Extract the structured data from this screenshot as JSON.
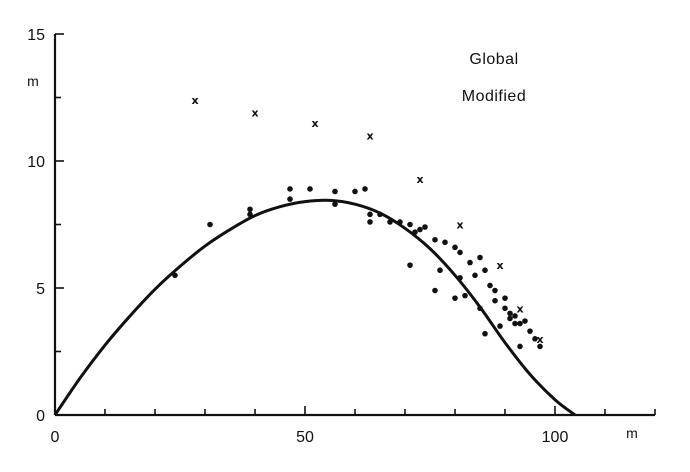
{
  "chart_data": {
    "type": "scatter",
    "title": "",
    "xlabel": "",
    "ylabel": "",
    "x_unit": "m",
    "y_unit": "m",
    "xlim": [
      0,
      120
    ],
    "ylim": [
      0,
      15
    ],
    "x_ticks": [
      0,
      50,
      100
    ],
    "y_ticks": [
      0,
      5,
      10,
      15
    ],
    "x_minor_step": 10,
    "y_minor_step": 2.5,
    "grid": false,
    "legend": [
      "Global",
      "Modified"
    ],
    "legend_position": "top-right",
    "series": [
      {
        "marker": "x",
        "points": [
          [
            28,
            12.4
          ],
          [
            40,
            11.9
          ],
          [
            52,
            11.5
          ],
          [
            63,
            11.0
          ],
          [
            73,
            9.3
          ],
          [
            81,
            7.5
          ],
          [
            89,
            5.9
          ],
          [
            93,
            4.2
          ],
          [
            97,
            3.0
          ]
        ]
      },
      {
        "marker": "dot",
        "points": [
          [
            24,
            5.5
          ],
          [
            31,
            7.5
          ],
          [
            39,
            8.1
          ],
          [
            39,
            7.9
          ],
          [
            47,
            8.9
          ],
          [
            47,
            8.5
          ],
          [
            51,
            8.9
          ],
          [
            56,
            8.8
          ],
          [
            56,
            8.3
          ],
          [
            60,
            8.8
          ],
          [
            62,
            8.9
          ],
          [
            63,
            7.9
          ],
          [
            63,
            7.6
          ],
          [
            65,
            7.9
          ],
          [
            67,
            7.6
          ],
          [
            69,
            7.6
          ],
          [
            71,
            7.5
          ],
          [
            71,
            5.9
          ],
          [
            72,
            7.2
          ],
          [
            73,
            7.3
          ],
          [
            74,
            7.4
          ],
          [
            76,
            6.9
          ],
          [
            76,
            4.9
          ],
          [
            77,
            5.7
          ],
          [
            78,
            6.8
          ],
          [
            80,
            6.6
          ],
          [
            80,
            4.6
          ],
          [
            81,
            6.4
          ],
          [
            81,
            5.4
          ],
          [
            82,
            4.7
          ],
          [
            83,
            6.0
          ],
          [
            84,
            5.5
          ],
          [
            85,
            6.2
          ],
          [
            85,
            4.2
          ],
          [
            86,
            5.7
          ],
          [
            86,
            3.2
          ],
          [
            87,
            5.1
          ],
          [
            88,
            4.9
          ],
          [
            88,
            4.5
          ],
          [
            89,
            3.5
          ],
          [
            90,
            4.6
          ],
          [
            90,
            4.2
          ],
          [
            91,
            4.0
          ],
          [
            91,
            3.8
          ],
          [
            92,
            3.9
          ],
          [
            92,
            3.6
          ],
          [
            93,
            2.7
          ],
          [
            93,
            3.6
          ],
          [
            94,
            3.7
          ],
          [
            95,
            3.3
          ],
          [
            96,
            3.0
          ],
          [
            97,
            2.7
          ]
        ]
      },
      {
        "type": "line",
        "points": [
          [
            0,
            0
          ],
          [
            5,
            1.45
          ],
          [
            10,
            2.75
          ],
          [
            15,
            3.9
          ],
          [
            20,
            4.95
          ],
          [
            25,
            5.85
          ],
          [
            30,
            6.65
          ],
          [
            35,
            7.3
          ],
          [
            40,
            7.85
          ],
          [
            45,
            8.2
          ],
          [
            50,
            8.4
          ],
          [
            55,
            8.45
          ],
          [
            60,
            8.3
          ],
          [
            65,
            7.95
          ],
          [
            70,
            7.35
          ],
          [
            75,
            6.55
          ],
          [
            80,
            5.5
          ],
          [
            85,
            4.25
          ],
          [
            90,
            2.85
          ],
          [
            95,
            1.6
          ],
          [
            100,
            0.6
          ],
          [
            104,
            0
          ]
        ]
      }
    ]
  }
}
